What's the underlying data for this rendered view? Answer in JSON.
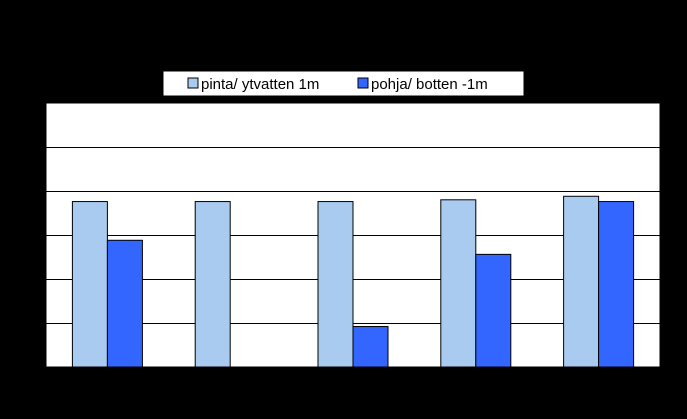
{
  "chart_data": {
    "type": "bar",
    "categories": [
      "",
      "",
      "",
      "",
      ""
    ],
    "series": [
      {
        "name": "pinta/ ytvatten 1m",
        "values": [
          9.4,
          9.4,
          9.4,
          9.5,
          9.7
        ],
        "color": "#a9cbef"
      },
      {
        "name": "pohja/ botten -1m",
        "values": [
          7.2,
          null,
          2.3,
          6.4,
          9.4
        ],
        "color": "#3366ff"
      }
    ],
    "ylim": [
      0,
      15
    ],
    "ytick_step": 2.5,
    "grid": true,
    "legend": "top-center",
    "plot_background": "#ffffff",
    "page_background": "#000000"
  }
}
